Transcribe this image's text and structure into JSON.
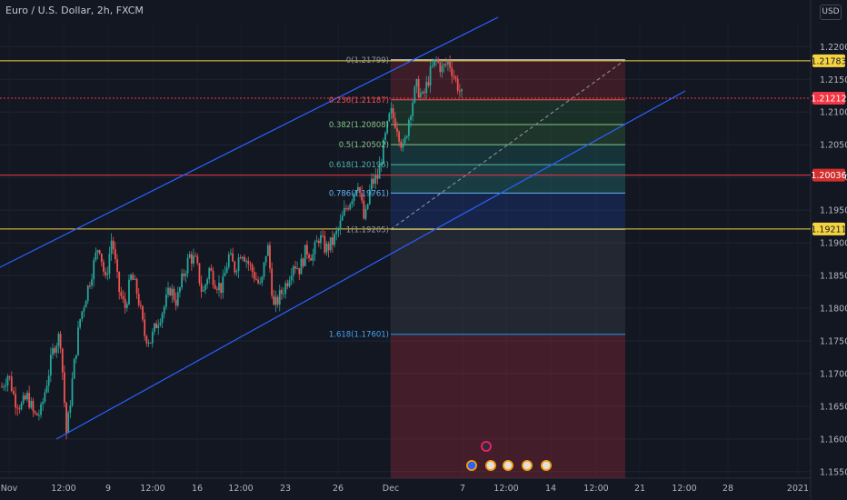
{
  "header": {
    "title": "Euro / U.S. Dollar, 2h, FXCM",
    "currency_button": "USD"
  },
  "colors": {
    "background": "#131722",
    "up": "#26a69a",
    "down": "#ef5350",
    "channel": "#2962ff",
    "level_yellow": "#f5d442",
    "level_red": "#f23645",
    "axis_text": "#b2b5be"
  },
  "chart_data": {
    "type": "candlestick",
    "symbol": "EURUSD",
    "timeframe": "2h",
    "x_ticks": [
      "Nov",
      "12:00",
      "9",
      "12:00",
      "16",
      "12:00",
      "23",
      "26",
      "Dec",
      "7",
      "12:00",
      "14",
      "12:00",
      "21",
      "12:00",
      "28",
      "2021"
    ],
    "y_ticks": [
      "1.22000",
      "1.21500",
      "1.21000",
      "1.20500",
      "1.20000",
      "1.19500",
      "1.19000",
      "1.18500",
      "1.18000",
      "1.17500",
      "1.17000",
      "1.16500",
      "1.16000",
      "1.15500"
    ],
    "ylim": [
      1.154,
      1.2238
    ],
    "price_tags": [
      {
        "value": "1.21783",
        "style": "yellow"
      },
      {
        "value": "1.21212",
        "style": "red"
      },
      {
        "value": "1.20036",
        "style": "red-dark"
      },
      {
        "value": "1.19211",
        "style": "yellow"
      }
    ],
    "fib_levels": [
      {
        "label": "0(1.21799)",
        "value": 1.21799
      },
      {
        "label": "0.236(1.21187)",
        "value": 1.21187
      },
      {
        "label": "0.382(1.20808)",
        "value": 1.20808
      },
      {
        "label": "0.5(1.20502)",
        "value": 1.20502
      },
      {
        "label": "0.618(1.20196)",
        "value": 1.20196
      },
      {
        "label": "0.786(1.19761)",
        "value": 1.19761
      },
      {
        "label": "1(1.19205)",
        "value": 1.19205
      },
      {
        "label": "1.618(1.17601)",
        "value": 1.17601
      }
    ],
    "horizontal_levels": [
      1.21783,
      1.21212,
      1.20036,
      1.19211
    ],
    "price_path": [
      1.168,
      1.17,
      1.166,
      1.165,
      1.1665,
      1.1635,
      1.164,
      1.169,
      1.174,
      1.176,
      1.1605,
      1.17,
      1.178,
      1.182,
      1.186,
      1.19,
      1.184,
      1.191,
      1.183,
      1.18,
      1.185,
      1.182,
      1.176,
      1.175,
      1.178,
      1.18,
      1.183,
      1.181,
      1.185,
      1.188,
      1.187,
      1.182,
      1.186,
      1.184,
      1.183,
      1.188,
      1.186,
      1.189,
      1.187,
      1.185,
      1.183,
      1.19,
      1.18,
      1.182,
      1.184,
      1.187,
      1.186,
      1.189,
      1.188,
      1.191,
      1.189,
      1.19,
      1.192,
      1.195,
      1.197,
      1.1995,
      1.193,
      1.199,
      1.2,
      1.205,
      1.21,
      1.208,
      1.204,
      1.21,
      1.214,
      1.212,
      1.2155,
      1.218,
      1.2165,
      1.2178,
      1.215,
      1.2125
    ]
  }
}
